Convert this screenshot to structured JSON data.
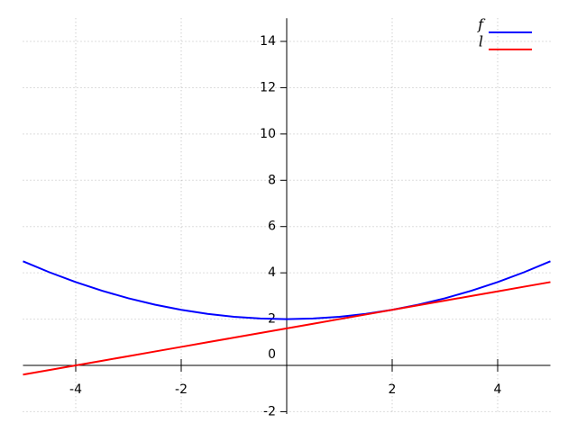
{
  "chart_data": {
    "type": "line",
    "x": [
      -5,
      -4.5,
      -4,
      -3.5,
      -3,
      -2.5,
      -2,
      -1.5,
      -1,
      -0.5,
      0,
      0.5,
      1,
      1.5,
      2,
      2.5,
      3,
      3.5,
      4,
      4.5,
      5
    ],
    "series": [
      {
        "name": "f",
        "color": "#0000ff",
        "values": [
          4.5,
          4.025,
          3.6,
          3.225,
          2.9,
          2.625,
          2.4,
          2.225,
          2.1,
          2.025,
          2,
          2.025,
          2.1,
          2.225,
          2.4,
          2.625,
          2.9,
          3.225,
          3.6,
          4.025,
          4.5
        ]
      },
      {
        "name": "l",
        "color": "#ff0000",
        "values": [
          -0.4,
          -0.2,
          0,
          0.2,
          0.4,
          0.6,
          0.8,
          1.0,
          1.2,
          1.4,
          1.6,
          1.8,
          2.0,
          2.2,
          2.4,
          2.6,
          2.8,
          3.0,
          3.2,
          3.4,
          3.6
        ]
      }
    ],
    "xlim": [
      -5,
      5
    ],
    "ylim": [
      -2.1,
      15
    ],
    "xticks": [
      -4,
      -2,
      2,
      4
    ],
    "yticks": [
      -2,
      0,
      2,
      4,
      6,
      8,
      10,
      12,
      14
    ],
    "grid": true,
    "legend": "upper right"
  }
}
